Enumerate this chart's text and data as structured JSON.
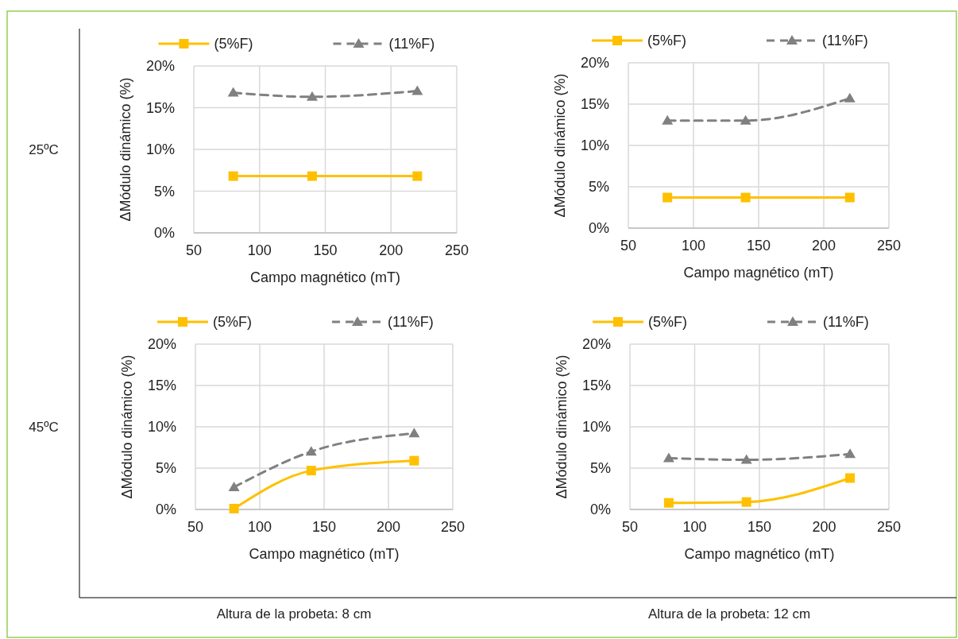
{
  "chart_data": [
    {
      "type": "line",
      "xlabel": "Campo magnético (mT)",
      "ylabel": "ΔMódulo dinámico (%)",
      "x": [
        80,
        140,
        220
      ],
      "xlim": [
        50,
        250
      ],
      "xticks": [
        50,
        100,
        150,
        200,
        250
      ],
      "ylim": [
        0,
        20
      ],
      "yticks": [
        {
          "value": 0,
          "label": "0%"
        },
        {
          "value": 5,
          "label": "5%"
        },
        {
          "value": 10,
          "label": "10%"
        },
        {
          "value": 15,
          "label": "15%"
        },
        {
          "value": 20,
          "label": "20%"
        }
      ],
      "grid": true,
      "legend": "top",
      "annotations": [
        "25ºC"
      ],
      "series": [
        {
          "name": "(5%F)",
          "color": "#ffc000",
          "marker": "square",
          "line_style": "solid",
          "values": [
            6.8,
            6.8,
            6.8
          ]
        },
        {
          "name": "(11%F)",
          "color": "#808080",
          "marker": "triangle",
          "line_style": "dashed",
          "values": [
            16.8,
            16.3,
            17.0
          ]
        }
      ]
    },
    {
      "type": "line",
      "xlabel": "Campo magnético (mT)",
      "ylabel": "ΔMódulo dinámico (%)",
      "x": [
        80,
        140,
        220
      ],
      "xlim": [
        50,
        250
      ],
      "xticks": [
        50,
        100,
        150,
        200,
        250
      ],
      "ylim": [
        0,
        20
      ],
      "yticks": [
        {
          "value": 0,
          "label": "0%"
        },
        {
          "value": 5,
          "label": "5%"
        },
        {
          "value": 10,
          "label": "10%"
        },
        {
          "value": 15,
          "label": "15%"
        },
        {
          "value": 20,
          "label": "20%"
        }
      ],
      "grid": true,
      "legend": "top",
      "series": [
        {
          "name": "(5%F)",
          "color": "#ffc000",
          "marker": "square",
          "line_style": "solid",
          "values": [
            3.7,
            3.7,
            3.7
          ]
        },
        {
          "name": "(11%F)",
          "color": "#808080",
          "marker": "triangle",
          "line_style": "dashed",
          "values": [
            13.0,
            13.0,
            15.7
          ]
        }
      ]
    },
    {
      "type": "line",
      "xlabel": "Campo magnético (mT)",
      "ylabel": "ΔMódulo dinámico (%)",
      "x": [
        80,
        140,
        220
      ],
      "xlim": [
        50,
        250
      ],
      "xticks": [
        50,
        100,
        150,
        200,
        250
      ],
      "ylim": [
        0,
        20
      ],
      "yticks": [
        {
          "value": 0,
          "label": "0%"
        },
        {
          "value": 5,
          "label": "5%"
        },
        {
          "value": 10,
          "label": "10%"
        },
        {
          "value": 15,
          "label": "15%"
        },
        {
          "value": 20,
          "label": "20%"
        }
      ],
      "grid": true,
      "legend": "top",
      "annotations": [
        "45ºC",
        "Altura de la probeta: 8 cm"
      ],
      "series": [
        {
          "name": "(5%F)",
          "color": "#ffc000",
          "marker": "square",
          "line_style": "solid",
          "values": [
            0.1,
            4.7,
            5.9
          ]
        },
        {
          "name": "(11%F)",
          "color": "#808080",
          "marker": "triangle",
          "line_style": "dashed",
          "values": [
            2.7,
            7.0,
            9.2
          ]
        }
      ]
    },
    {
      "type": "line",
      "xlabel": "Campo magnético (mT)",
      "ylabel": "ΔMódulo dinámico (%)",
      "x": [
        80,
        140,
        220
      ],
      "xlim": [
        50,
        250
      ],
      "xticks": [
        50,
        100,
        150,
        200,
        250
      ],
      "ylim": [
        0,
        20
      ],
      "yticks": [
        {
          "value": 0,
          "label": "0%"
        },
        {
          "value": 5,
          "label": "5%"
        },
        {
          "value": 10,
          "label": "10%"
        },
        {
          "value": 15,
          "label": "15%"
        },
        {
          "value": 20,
          "label": "20%"
        }
      ],
      "grid": true,
      "legend": "top",
      "annotations": [
        "Altura de la probeta: 12 cm"
      ],
      "series": [
        {
          "name": "(5%F)",
          "color": "#ffc000",
          "marker": "square",
          "line_style": "solid",
          "values": [
            0.8,
            0.9,
            3.8
          ]
        },
        {
          "name": "(11%F)",
          "color": "#808080",
          "marker": "triangle",
          "line_style": "dashed",
          "values": [
            6.2,
            6.0,
            6.7
          ]
        }
      ]
    }
  ]
}
